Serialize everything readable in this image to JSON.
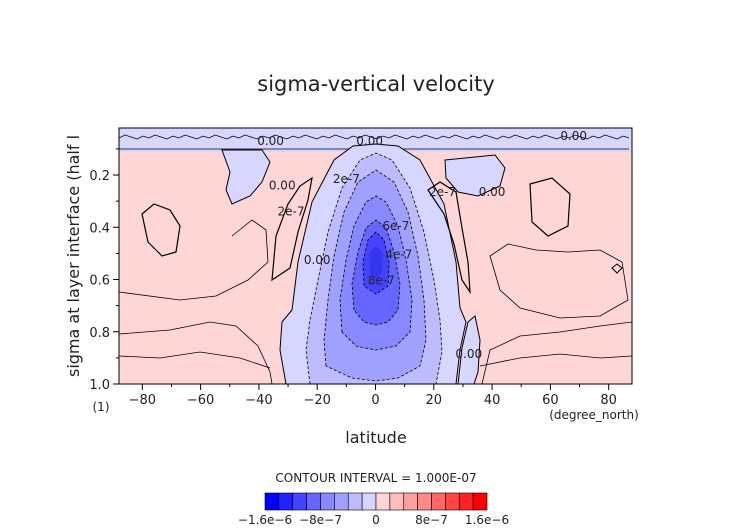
{
  "chart_data": {
    "type": "heatmap",
    "title": "sigma-vertical velocity",
    "xlabel": "latitude",
    "xunits": "(degree_north)",
    "ylabel": "sigma at layer interface (half l",
    "yunits": "(1)",
    "xlim": [
      -88,
      88
    ],
    "ylim": [
      1.0,
      0.02
    ],
    "x_ticks": [
      -80,
      -60,
      -40,
      -20,
      0,
      20,
      40,
      60,
      80
    ],
    "x_tick_labels": [
      "−80",
      "−60",
      "−40",
      "−20",
      "0",
      "20",
      "40",
      "60",
      "80"
    ],
    "y_ticks": [
      0.2,
      0.4,
      0.6,
      0.8,
      1.0
    ],
    "y_tick_labels": [
      "0.2",
      "0.4",
      "0.6",
      "0.8",
      "1.0"
    ],
    "contour_interval_text": "CONTOUR INTERVAL = 1.000E-07",
    "contour_labels": [
      {
        "text": "0.00",
        "lat": -36,
        "sigma": 0.085
      },
      {
        "text": "0.00",
        "lat": -2,
        "sigma": 0.085
      },
      {
        "text": "0.00",
        "lat": 68,
        "sigma": 0.065
      },
      {
        "text": "0.00",
        "lat": -32,
        "sigma": 0.255
      },
      {
        "text": "2e-7",
        "lat": -29,
        "sigma": 0.355
      },
      {
        "text": "2e-7",
        "lat": -10,
        "sigma": 0.23
      },
      {
        "text": "0.00",
        "lat": -20,
        "sigma": 0.54
      },
      {
        "text": "4e-7",
        "lat": 8,
        "sigma": 0.52
      },
      {
        "text": "6e-7",
        "lat": 7,
        "sigma": 0.41
      },
      {
        "text": "8e-7",
        "lat": 2,
        "sigma": 0.62
      },
      {
        "text": "2e-7",
        "lat": 23,
        "sigma": 0.28
      },
      {
        "text": "0.00",
        "lat": 40,
        "sigma": 0.28
      },
      {
        "text": "0.00",
        "lat": 32,
        "sigma": 0.9
      }
    ],
    "colorbar": {
      "levels": [
        -1.6e-06,
        -1.4e-06,
        -1.2e-06,
        -1e-06,
        -8e-07,
        -6e-07,
        -4e-07,
        -2e-07,
        0,
        2e-07,
        4e-07,
        6e-07,
        8e-07,
        1e-06,
        1.2e-06,
        1.4e-06,
        1.6e-06
      ],
      "colors": [
        "#0000ff",
        "#2222ff",
        "#4444ff",
        "#6666ff",
        "#8888ff",
        "#a0a0ff",
        "#bcbcff",
        "#d6d6ff",
        "#ffd6d6",
        "#ffbcbc",
        "#ffa0a0",
        "#ff8888",
        "#ff6666",
        "#ff4444",
        "#ff2222",
        "#ff0000"
      ],
      "tick_labels": [
        "−1.6e−6",
        "−8e−7",
        "0",
        "8e−7",
        "1.6e−6"
      ],
      "tick_values": [
        -1.6e-06,
        -8e-07,
        0,
        8e-07,
        1.6e-06
      ]
    }
  }
}
